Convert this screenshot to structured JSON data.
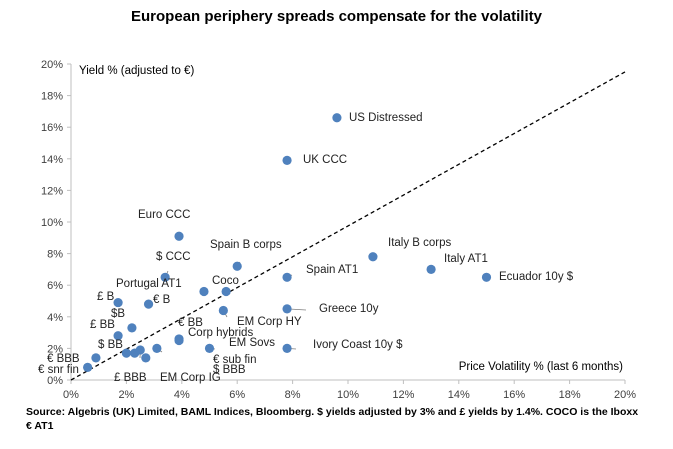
{
  "chart_data": {
    "type": "scatter",
    "title": "European periphery spreads compensate for the volatility",
    "xlabel": "Price Volatility % (last 6 months)",
    "ylabel": "Yield % (adjusted to €)",
    "xlim": [
      0,
      20
    ],
    "ylim": [
      0,
      20
    ],
    "x_ticks": [
      "0%",
      "2%",
      "4%",
      "6%",
      "8%",
      "10%",
      "12%",
      "14%",
      "16%",
      "18%",
      "20%"
    ],
    "y_ticks": [
      "0%",
      "2%",
      "4%",
      "6%",
      "8%",
      "10%",
      "12%",
      "14%",
      "16%",
      "18%",
      "20%"
    ],
    "grid": false,
    "reference_line": {
      "style": "dashed",
      "from": [
        0,
        0
      ],
      "to": [
        20,
        19.5
      ]
    },
    "marker_color": "#4f81bd",
    "points": [
      {
        "label": "US Distressed",
        "x": 9.6,
        "y": 16.6
      },
      {
        "label": "UK CCC",
        "x": 7.8,
        "y": 13.9
      },
      {
        "label": "Euro CCC",
        "x": 3.9,
        "y": 9.1
      },
      {
        "label": "Spain B corps",
        "x": 6.0,
        "y": 7.2
      },
      {
        "label": "$ CCC",
        "x": 3.4,
        "y": 6.5
      },
      {
        "label": "Portugal AT1",
        "x": 4.8,
        "y": 5.6
      },
      {
        "label": "Coco",
        "x": 5.6,
        "y": 5.6
      },
      {
        "label": "Spain AT1",
        "x": 7.8,
        "y": 6.5
      },
      {
        "label": "Italy B corps",
        "x": 10.9,
        "y": 7.8
      },
      {
        "label": "Italy AT1",
        "x": 13.0,
        "y": 7.0
      },
      {
        "label": "Ecuador 10y $",
        "x": 15.0,
        "y": 6.5
      },
      {
        "label": "£ B",
        "x": 1.7,
        "y": 4.9
      },
      {
        "label": "€ B",
        "x": 2.8,
        "y": 4.8
      },
      {
        "label": "$B",
        "x": 1.7,
        "y": 2.8
      },
      {
        "label": "£ BB",
        "x": 2.2,
        "y": 3.3
      },
      {
        "label": "Greece 10y",
        "x": 7.8,
        "y": 4.5
      },
      {
        "label": "EM Corp HY",
        "x": 5.5,
        "y": 4.4
      },
      {
        "label": "€ BB",
        "x": 3.9,
        "y": 2.6
      },
      {
        "label": "Corp hybrids",
        "x": 3.9,
        "y": 2.5
      },
      {
        "label": "EM Sovs",
        "x": 5.0,
        "y": 2.0
      },
      {
        "label": "Ivory Coast 10y $",
        "x": 7.8,
        "y": 2.0
      },
      {
        "label": "€ sub fin",
        "x": 3.1,
        "y": 2.0
      },
      {
        "label": "$ BBB",
        "x": 2.7,
        "y": 1.4
      },
      {
        "label": "$ BB",
        "x": 2.0,
        "y": 1.7
      },
      {
        "label": "€ BBB",
        "x": 0.9,
        "y": 1.4
      },
      {
        "label": "€ snr fin",
        "x": 0.6,
        "y": 0.8
      },
      {
        "label": "£ BBB",
        "x": 2.3,
        "y": 1.7
      },
      {
        "label": "EM Corp IG",
        "x": 2.5,
        "y": 1.9
      }
    ]
  },
  "source_note": "Source: Algebris (UK) Limited, BAML Indices, Bloomberg. $ yields adjusted by 3% and £ yields by 1.4%. COCO is the Iboxx € AT1"
}
